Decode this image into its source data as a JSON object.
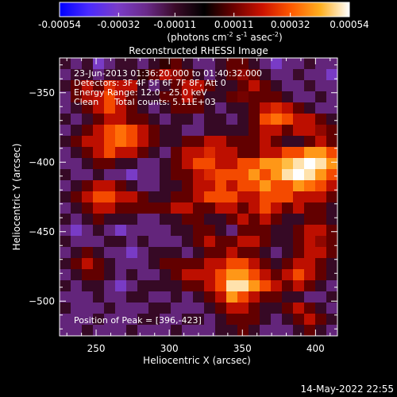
{
  "chart_data": {
    "type": "heatmap",
    "title": "Reconstructed RHESSI Image",
    "xlabel": "Heliocentric X (arcsec)",
    "ylabel": "Heliocentric Y (arcsec)",
    "xlim": [
      225,
      415
    ],
    "ylim": [
      -525,
      -325
    ],
    "x_ticks": [
      250,
      300,
      350,
      400
    ],
    "y_ticks": [
      -350,
      -400,
      -450,
      -500
    ],
    "colorbar": {
      "label_parts": [
        "(photons cm",
        "-2",
        " s",
        "-1",
        " asec",
        "-2",
        ")"
      ],
      "range": [
        -0.00054,
        0.00054
      ],
      "ticks": [
        -0.00054,
        -0.00032,
        -0.00011,
        0.00011,
        0.00032,
        0.00054
      ],
      "tick_labels": [
        "-0.00054",
        "-0.00032",
        "-0.00011",
        "0.00011",
        "0.00032",
        "0.00054"
      ],
      "colors": [
        "#0000ff",
        "#4a2aff",
        "#7a3cc8",
        "#6a2a8a",
        "#3a0a28",
        "#000000",
        "#6a0000",
        "#cc1200",
        "#ff5a00",
        "#ffb020",
        "#ffffff"
      ]
    },
    "annotations": {
      "time_range": "23-Jun-2013 01:36:20.000 to 01:40:32.000",
      "detectors": "Detectors: 3F 4F 5F 6F 7F 8F, Att 0",
      "energy": "Energy Range: 12.0 - 25.0 keV",
      "clean_label": "Clean",
      "total_counts": "Total counts: 5.11E+03",
      "peak": "Position of Peak = [396,-423]"
    },
    "peak_position": [
      396,
      -423
    ],
    "image_grid": {
      "x_start": 225,
      "x_step": 7.6,
      "y_start": -325,
      "y_step": -8,
      "values": [
        [
          -0.00011,
          -0.0002,
          -0.00011,
          -0.00032,
          -0.0002,
          -0.00011,
          -0.00011,
          -0.0002,
          -0.0001,
          5e-05,
          0.0001,
          -0.0001,
          -0.0002,
          -0.0002,
          -0.00011,
          0.0001,
          0.0001,
          -0.0001,
          -0.0002,
          -0.00032,
          -0.0002,
          -0.0002,
          -0.00011,
          -0.0002,
          -0.0002
        ],
        [
          -0.0002,
          -0.00011,
          -0.0001,
          -0.0002,
          -0.00011,
          -0.0001,
          -0.0001,
          5e-05,
          0.0001,
          0.0002,
          0.00015,
          0.0001,
          -0.0001,
          -0.0002,
          -0.0001,
          0.0001,
          0.00015,
          0.0001,
          -0.0001,
          -0.0002,
          -0.0002,
          -0.00011,
          -0.0002,
          -0.0002,
          -0.00032
        ],
        [
          -0.00011,
          0.0001,
          0.0002,
          0.0001,
          0.00025,
          0.0002,
          0.0002,
          -0.0001,
          -0.0002,
          -0.00011,
          0.0001,
          0.0002,
          0.0002,
          0.0001,
          -0.0001,
          -0.0001,
          0.0001,
          0.0002,
          0.0001,
          -0.0001,
          -0.0002,
          -0.0002,
          -0.00011,
          -0.0002,
          -0.0002
        ],
        [
          -0.0002,
          0.0001,
          0.00018,
          0.0002,
          0.0003,
          0.0002,
          0.0001,
          -0.0001,
          -0.0001,
          0.0001,
          0.0001,
          0.0002,
          0.0001,
          -0.0001,
          -0.0001,
          0.0001,
          0.00012,
          0.0001,
          0.0001,
          0.0001,
          -0.0001,
          -0.0002,
          -0.0002,
          -0.0001,
          -0.0002
        ],
        [
          -0.0002,
          -0.00011,
          0.0001,
          0.0002,
          0.0003,
          0.0002,
          0.0001,
          -0.0001,
          -0.0002,
          -0.0001,
          0.0001,
          0.0001,
          0.0001,
          -0.0001,
          -0.0002,
          -0.0001,
          -0.0001,
          0.0001,
          0.0002,
          0.00025,
          0.0002,
          0.0001,
          -0.0001,
          -0.0002,
          -0.0002
        ],
        [
          -0.0001,
          -0.0002,
          -0.00011,
          0.0001,
          0.0002,
          0.0002,
          0.0001,
          0.0001,
          -0.0001,
          -0.0002,
          -0.0001,
          -0.0001,
          -0.0002,
          -0.0001,
          -0.0001,
          -0.0002,
          -0.0001,
          0.0001,
          0.0003,
          0.00035,
          0.0003,
          0.0002,
          0.0002,
          0.0001,
          -0.0001
        ],
        [
          -0.0002,
          -0.0001,
          0.0001,
          0.0002,
          0.0003,
          0.00035,
          0.0003,
          0.0002,
          0.0001,
          -0.0001,
          -0.0001,
          -0.0002,
          -0.0002,
          -0.0001,
          -0.0001,
          -0.0001,
          -0.0001,
          0.0001,
          0.0002,
          0.0002,
          0.0001,
          0.0002,
          0.0002,
          0.00015,
          0.0001
        ],
        [
          -0.0001,
          0.0001,
          0.0002,
          0.0002,
          0.0003,
          0.00035,
          0.0003,
          0.0002,
          0.0001,
          -0.0001,
          -0.0001,
          0.0001,
          0.0001,
          0.0002,
          0.0002,
          0.0001,
          0.0001,
          0.0001,
          0.0002,
          0.0001,
          -0.0001,
          -0.0001,
          0.0001,
          0.0002,
          0.0001
        ],
        [
          -0.0002,
          -0.0001,
          0.0001,
          0.0002,
          0.0003,
          0.0002,
          0.0002,
          0.0001,
          -0.0001,
          -0.0002,
          0.0001,
          0.0002,
          0.0002,
          0.00025,
          0.0002,
          0.0002,
          0.0001,
          0.0001,
          0.0002,
          0.0002,
          0.0003,
          0.0003,
          0.0004,
          0.0004,
          0.0003
        ],
        [
          -0.0002,
          -0.0002,
          -0.0001,
          0.0001,
          0.0001,
          -0.0001,
          -0.0001,
          -0.0002,
          -0.0002,
          -0.0001,
          0.0001,
          0.0002,
          0.0003,
          0.0003,
          0.0002,
          0.0002,
          0.0003,
          0.0003,
          0.0004,
          0.0004,
          0.00045,
          0.0005,
          0.00054,
          0.0005,
          0.0004
        ],
        [
          -0.0001,
          -0.0002,
          -0.0002,
          -0.0001,
          -0.0002,
          -0.0002,
          -0.00032,
          -0.0002,
          -0.0002,
          -0.0001,
          0.0001,
          0.0001,
          0.0002,
          0.00025,
          0.0003,
          0.0003,
          0.0003,
          0.0004,
          0.0003,
          0.0004,
          0.0005,
          0.00054,
          0.0005,
          0.0004,
          0.0003
        ],
        [
          -0.0002,
          -0.0001,
          0.0001,
          0.0002,
          0.0002,
          0.0001,
          -0.0001,
          -0.0002,
          -0.0002,
          -0.0001,
          -0.0001,
          0.0001,
          0.0002,
          0.0002,
          0.0003,
          0.0002,
          0.0003,
          0.0003,
          0.0004,
          0.0003,
          0.0003,
          0.0004,
          0.00035,
          0.0003,
          0.0002
        ],
        [
          -0.0001,
          0.0001,
          0.0002,
          0.0003,
          0.0003,
          0.0002,
          0.0002,
          0.0001,
          -0.0001,
          -0.0001,
          0.0001,
          0.0001,
          0.0002,
          0.0003,
          0.0003,
          0.0003,
          0.0002,
          0.0002,
          0.0003,
          0.0003,
          0.0003,
          0.0002,
          0.0002,
          0.0002,
          0.0001
        ],
        [
          -0.0002,
          -0.0001,
          0.0001,
          0.0002,
          0.0002,
          0.0001,
          0.0001,
          0.0001,
          0.0001,
          0.0001,
          0.0002,
          0.0002,
          0.0001,
          0.0001,
          0.0002,
          0.0002,
          0.0001,
          0.0002,
          0.0003,
          0.0002,
          0.0001,
          0.0002,
          0.0001,
          0.0001,
          -0.0001
        ],
        [
          -0.0001,
          -0.0002,
          -0.0001,
          0.0001,
          -0.0001,
          -0.0001,
          -0.0001,
          -0.0002,
          -0.0002,
          -0.0001,
          -0.0001,
          0.0001,
          0.0001,
          -0.0001,
          -0.0001,
          0.0001,
          0.0002,
          0.0001,
          0.0002,
          0.0001,
          -0.0001,
          -0.0001,
          0.0001,
          0.0001,
          -0.0001
        ],
        [
          -0.0002,
          -0.00032,
          -0.0002,
          -0.0001,
          -0.0002,
          -0.00032,
          -0.0002,
          -0.0002,
          -0.0002,
          -0.0002,
          -0.0001,
          -0.0001,
          0.0001,
          0.0001,
          -0.0001,
          -0.0002,
          0.0001,
          0.0001,
          0.0001,
          -0.0001,
          -0.0001,
          0.0001,
          0.0002,
          0.0002,
          0.0001
        ],
        [
          -0.0001,
          -0.0002,
          -0.0002,
          -0.0002,
          -0.0001,
          -0.0001,
          -0.0002,
          -0.0001,
          -0.0002,
          -0.0002,
          -0.0002,
          -0.0001,
          0.0001,
          0.0002,
          0.0001,
          0.0001,
          0.0002,
          0.0002,
          0.0001,
          -0.0001,
          -0.0001,
          0.0001,
          0.0002,
          0.00015,
          0.0001
        ],
        [
          -0.0002,
          -0.0001,
          0.0001,
          -0.0001,
          -0.0002,
          -0.0002,
          -0.00032,
          -0.0002,
          -0.0001,
          -0.0001,
          -0.0001,
          -0.0002,
          -0.0001,
          0.0001,
          0.0001,
          0.0002,
          0.0001,
          0.0001,
          -0.0001,
          -0.0002,
          -0.0001,
          0.0001,
          0.0002,
          0.0002,
          0.0001
        ],
        [
          -0.0001,
          0.0001,
          0.0002,
          0.0001,
          -0.0001,
          -0.0002,
          -0.0002,
          -0.0002,
          -0.0001,
          0.0001,
          0.0001,
          0.0001,
          0.0001,
          0.0002,
          0.0002,
          0.0003,
          0.0003,
          0.0002,
          0.0001,
          -0.0001,
          0.0001,
          0.0002,
          0.0002,
          0.0001,
          -0.0001
        ],
        [
          -0.0002,
          -0.0001,
          0.0001,
          0.0001,
          -0.0001,
          -0.0002,
          -0.0001,
          -0.0002,
          -0.0002,
          -0.0001,
          0.0001,
          0.0002,
          0.0002,
          0.0002,
          0.0003,
          0.0004,
          0.0004,
          0.0003,
          0.0002,
          0.0001,
          0.0002,
          0.0003,
          0.0002,
          0.0001,
          -0.0001
        ],
        [
          -0.0001,
          -0.0002,
          -0.0001,
          -0.0001,
          -0.0002,
          -0.00032,
          -0.0002,
          -0.0001,
          -0.0001,
          -0.0001,
          -0.0001,
          0.0001,
          0.0001,
          0.0002,
          0.0003,
          0.0005,
          0.0005,
          0.0004,
          0.0003,
          0.0002,
          0.0001,
          0.0002,
          0.0001,
          -0.0001,
          -0.0002
        ],
        [
          -0.0002,
          -0.0002,
          -0.0002,
          -0.0001,
          -0.0002,
          -0.0002,
          -0.0001,
          -0.0001,
          -0.0002,
          -0.0002,
          -0.0001,
          -0.0002,
          -0.0001,
          0.0001,
          0.0002,
          0.0004,
          0.0003,
          0.0002,
          0.0001,
          0.0001,
          -0.0001,
          -0.0001,
          -0.0002,
          -0.0002,
          -0.0001
        ],
        [
          -0.0001,
          -0.0002,
          -0.0002,
          -0.0002,
          -0.0001,
          -0.0002,
          -0.0002,
          -0.0002,
          -0.0001,
          -0.0001,
          -0.0002,
          -0.0002,
          -0.0002,
          -0.0001,
          0.0001,
          0.0002,
          0.0002,
          0.0001,
          -0.0001,
          -0.0001,
          0.0001,
          0.0002,
          0.0001,
          -0.0001,
          -0.0002
        ],
        [
          -0.0002,
          -0.0002,
          -0.0002,
          -0.0001,
          -0.0002,
          -0.0002,
          -0.0002,
          -0.0001,
          -0.0001,
          -0.0002,
          -0.0002,
          -0.0001,
          -0.0001,
          -0.0002,
          -0.0001,
          0.0001,
          0.0001,
          0.0001,
          -0.0001,
          -0.0002,
          -0.0001,
          0.0001,
          0.0002,
          0.0001,
          -0.0001
        ],
        [
          -0.0002,
          -0.0002,
          -0.0001,
          -0.0002,
          -0.0002,
          -0.0002,
          -0.0001,
          -0.0002,
          -0.0002,
          -0.0002,
          -0.0001,
          -0.0002,
          -0.0002,
          -0.0002,
          -0.0001,
          -0.0001,
          0.0001,
          -0.0001,
          -0.0002,
          -0.0002,
          -0.0002,
          -0.0001,
          0.0001,
          -0.0001,
          -0.0002
        ]
      ]
    }
  },
  "footer": {
    "timestamp": "14-May-2022 22:55"
  }
}
